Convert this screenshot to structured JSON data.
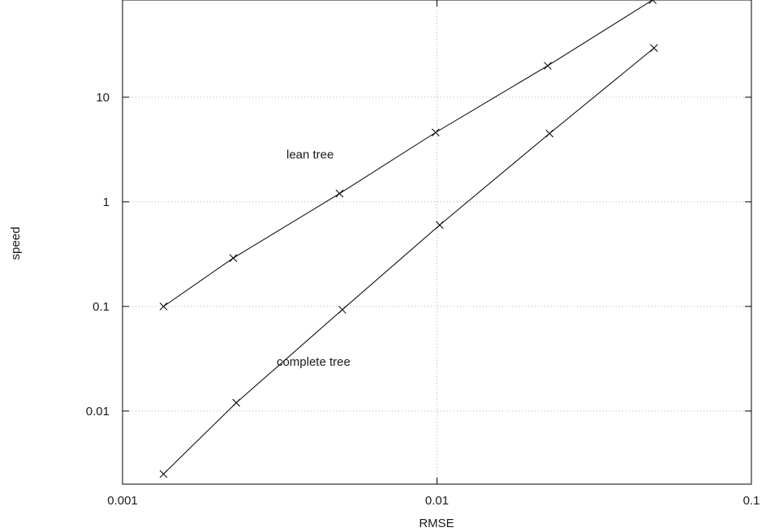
{
  "chart_data": {
    "type": "line",
    "xlabel": "RMSE",
    "ylabel": "speed",
    "xscale": "log",
    "yscale": "log",
    "xlim": [
      0.001,
      0.1
    ],
    "ylim": [
      0.002,
      85
    ],
    "grid": true,
    "x_ticks": [
      "0.001",
      "0.01",
      "0.1"
    ],
    "x_tick_values": [
      0.001,
      0.01,
      0.1
    ],
    "y_ticks": [
      "0.01",
      "0.1",
      "1",
      "10"
    ],
    "y_tick_values": [
      0.01,
      0.1,
      1,
      10
    ],
    "line_color": "#000000",
    "marker": "x",
    "series": [
      {
        "points": [
          {
            "x": 0.00135,
            "y": 0.1
          },
          {
            "x": 0.00225,
            "y": 0.29
          },
          {
            "x": 0.0049,
            "y": 1.2
          },
          {
            "x": 0.0099,
            "y": 4.6
          },
          {
            "x": 0.0225,
            "y": 20
          },
          {
            "x": 0.0485,
            "y": 85
          }
        ]
      },
      {
        "points": [
          {
            "x": 0.00135,
            "y": 0.0025
          },
          {
            "x": 0.0023,
            "y": 0.012
          },
          {
            "x": 0.005,
            "y": 0.093
          },
          {
            "x": 0.0102,
            "y": 0.6
          },
          {
            "x": 0.0228,
            "y": 4.5
          },
          {
            "x": 0.049,
            "y": 29.5
          }
        ]
      }
    ],
    "annotations": [
      {
        "text": "lean tree",
        "x": 0.00395,
        "y": 2.6
      },
      {
        "text": "complete tree",
        "x": 0.00405,
        "y": 0.027
      }
    ]
  }
}
